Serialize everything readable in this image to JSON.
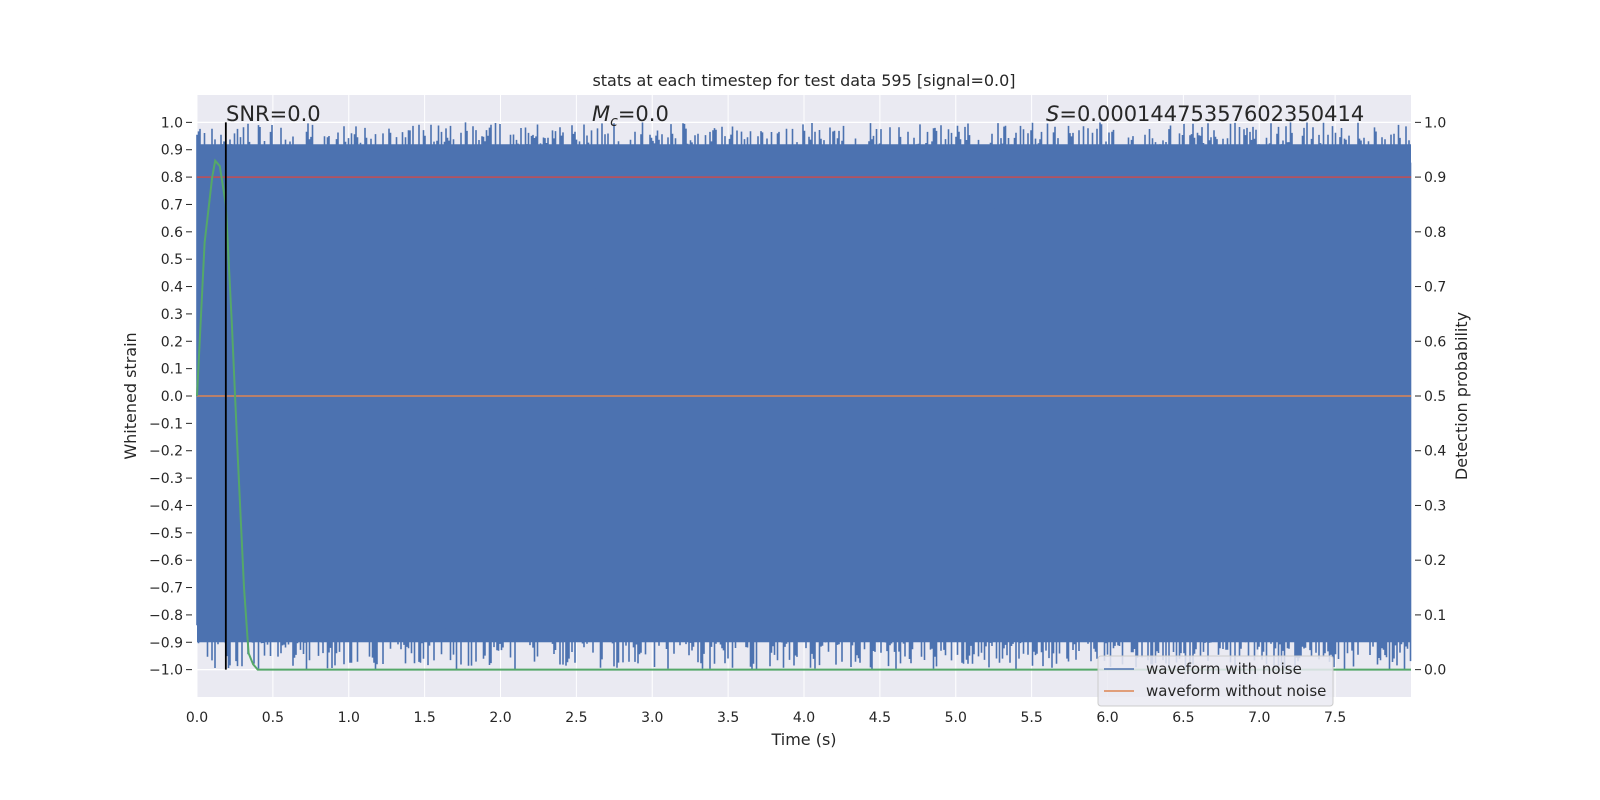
{
  "chart_data": {
    "type": "line",
    "title": "stats at each timestep for test data 595 [signal=0.0]",
    "xlabel": "Time (s)",
    "ylabel": "Whitened strain",
    "ylabel_right": "Detection probability",
    "xlim": [
      0,
      8.0
    ],
    "ylim": [
      -1.1,
      1.1
    ],
    "ylim_right": [
      -0.05,
      1.05
    ],
    "x_ticks": [
      "0.0",
      "0.5",
      "1.0",
      "1.5",
      "2.0",
      "2.5",
      "3.0",
      "3.5",
      "4.0",
      "4.5",
      "5.0",
      "5.5",
      "6.0",
      "6.5",
      "7.0",
      "7.5"
    ],
    "y_ticks": [
      "1.0",
      "0.9",
      "0.8",
      "0.7",
      "0.6",
      "0.5",
      "0.4",
      "0.3",
      "0.2",
      "0.1",
      "0.0",
      "−0.1",
      "−0.2",
      "−0.3",
      "−0.4",
      "−0.5",
      "−0.6",
      "−0.7",
      "−0.8",
      "−0.9",
      "−1.0"
    ],
    "y_right_ticks": [
      "1.0",
      "0.9",
      "0.8",
      "0.7",
      "0.6",
      "0.5",
      "0.4",
      "0.3",
      "0.2",
      "0.1",
      "0.0"
    ],
    "annotations": {
      "snr": "SNR=0.0",
      "mc_symbol": "M",
      "mc_sub": "c",
      "mc_value": "=0.0",
      "s_symbol": "S",
      "s_value": "=0.00014475357602350414"
    },
    "legend": [
      "waveform with noise",
      "waveform without noise"
    ],
    "legend_placement": "lower-right",
    "grid": true,
    "colors": {
      "noise": "#4c72b0",
      "clean": "#dd8452",
      "probability": "#55a868",
      "threshold": "#c44e52",
      "marker": "#000000",
      "background": "#eaeaf2"
    },
    "series": [
      {
        "name": "waveform with noise",
        "description": "dense noise oscillating between approx -1.0 and 1.0 over 0-8 s"
      },
      {
        "name": "waveform without noise",
        "x": [
          0,
          8.0
        ],
        "y": [
          0,
          0
        ]
      },
      {
        "axis": "right",
        "x": [
          0,
          0.05,
          0.1,
          0.12,
          0.15,
          0.19,
          0.23,
          0.27,
          0.31,
          0.34,
          0.37,
          0.4,
          8.0
        ],
        "y": [
          0.5,
          0.78,
          0.9,
          0.93,
          0.92,
          0.85,
          0.63,
          0.38,
          0.15,
          0.03,
          0.01,
          0.0,
          0.0
        ]
      },
      {
        "axis": "right",
        "type": "hline",
        "y": 0.9
      },
      {
        "type": "vline",
        "x": 0.19
      }
    ]
  }
}
